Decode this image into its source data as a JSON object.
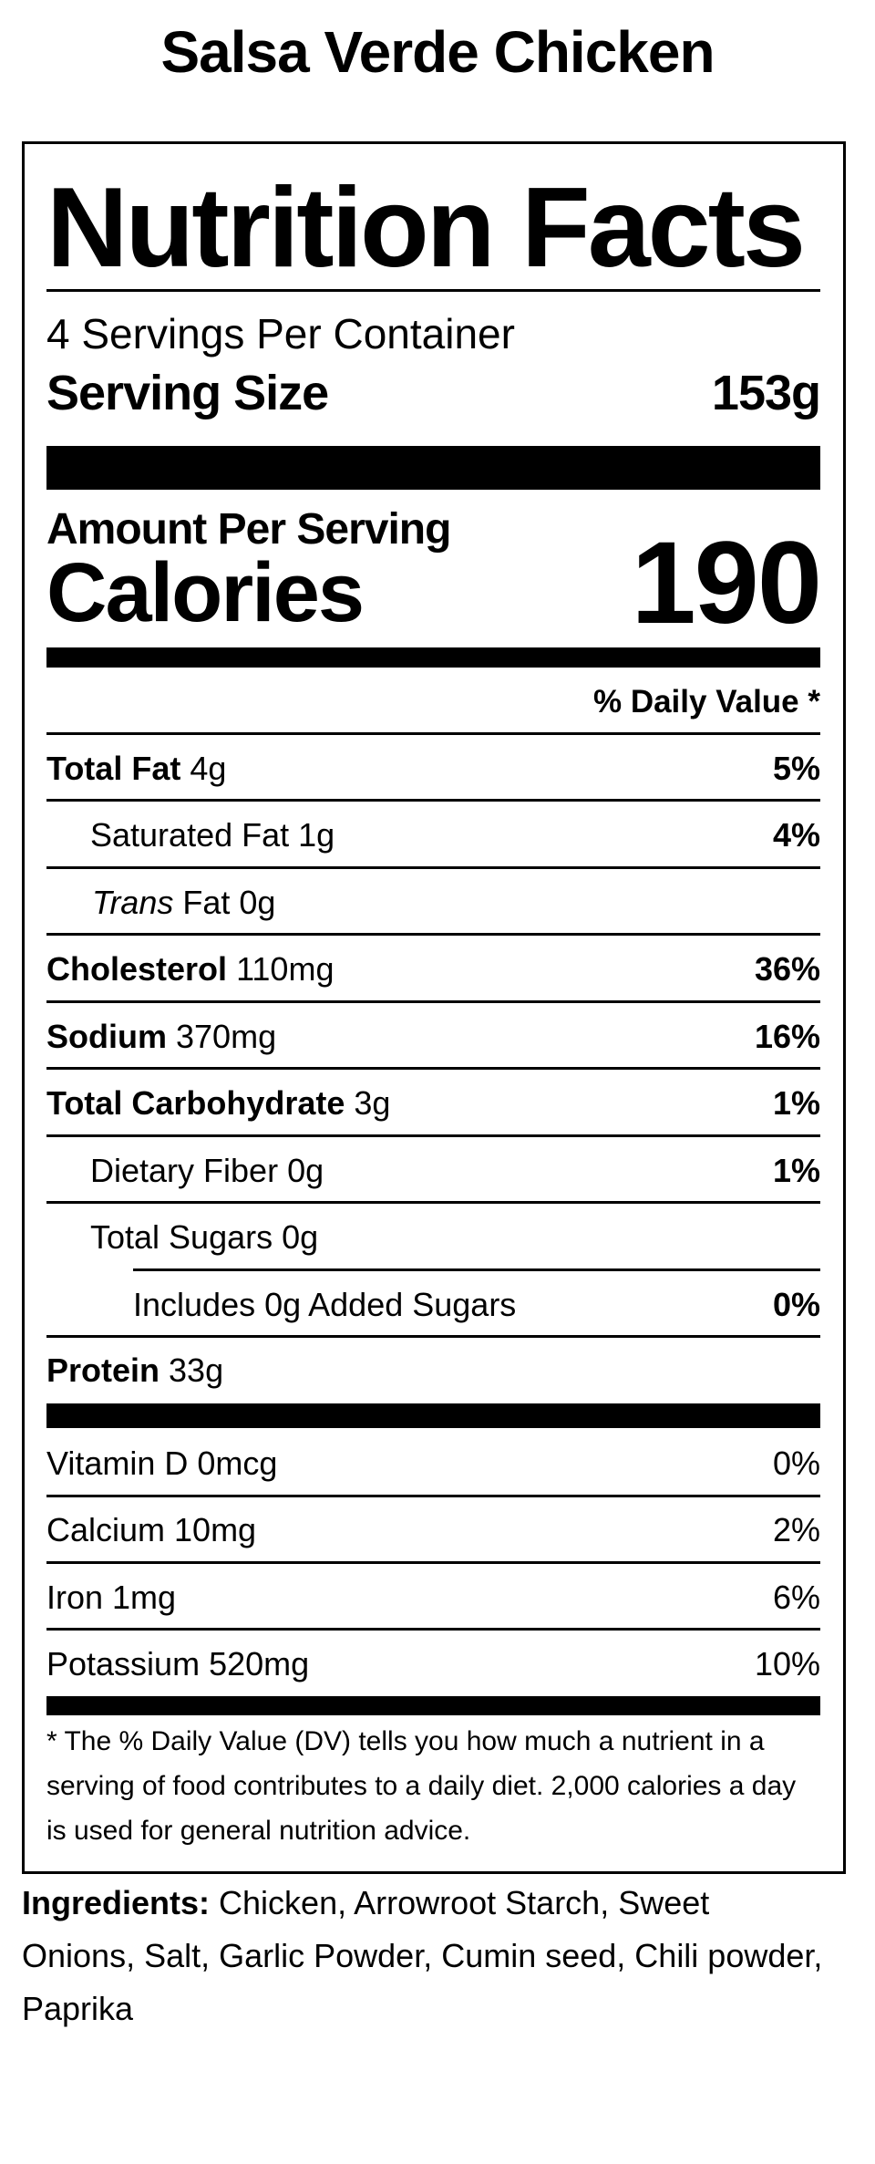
{
  "title": "Salsa Verde Chicken",
  "label": {
    "heading": "Nutrition Facts",
    "servings_per_container": "4 Servings Per Container",
    "serving_size_label": "Serving Size",
    "serving_size_value": "153g",
    "amount_per_serving": "Amount Per Serving",
    "calories_label": "Calories",
    "calories_value": "190",
    "daily_value_header": "% Daily Value *",
    "nutrients": [
      {
        "name": "Total Fat",
        "amount": "4g",
        "dv": "5%"
      },
      {
        "name": "Saturated Fat",
        "amount": "1g",
        "dv": "4%"
      },
      {
        "name_italic": "Trans",
        "name": "Fat",
        "amount": "0g",
        "dv": ""
      },
      {
        "name": "Cholesterol",
        "amount": "110mg",
        "dv": "36%"
      },
      {
        "name": "Sodium",
        "amount": "370mg",
        "dv": "16%"
      },
      {
        "name": "Total Carbohydrate",
        "amount": "3g",
        "dv": "1%"
      },
      {
        "name": "Dietary Fiber",
        "amount": "0g",
        "dv": "1%"
      },
      {
        "name": "Total Sugars",
        "amount": "0g",
        "dv": ""
      },
      {
        "name": "Includes 0g Added Sugars",
        "amount": "",
        "dv": "0%"
      },
      {
        "name": "Protein",
        "amount": "33g",
        "dv": ""
      }
    ],
    "vitamins": [
      {
        "text": "Vitamin D 0mcg",
        "dv": "0%"
      },
      {
        "text": "Calcium 10mg",
        "dv": "2%"
      },
      {
        "text": "Iron 1mg",
        "dv": "6%"
      },
      {
        "text": "Potassium 520mg",
        "dv": "10%"
      }
    ],
    "footnote": "* The % Daily Value (DV) tells you how much a nutrient in a serving of food contributes to a daily diet. 2,000 calories a day is used for general nutrition advice."
  },
  "ingredients": {
    "label": "Ingredients:",
    "text": "Chicken, Arrowroot Starch, Sweet Onions, Salt, Garlic Powder, Cumin seed, Chili powder, Paprika"
  }
}
